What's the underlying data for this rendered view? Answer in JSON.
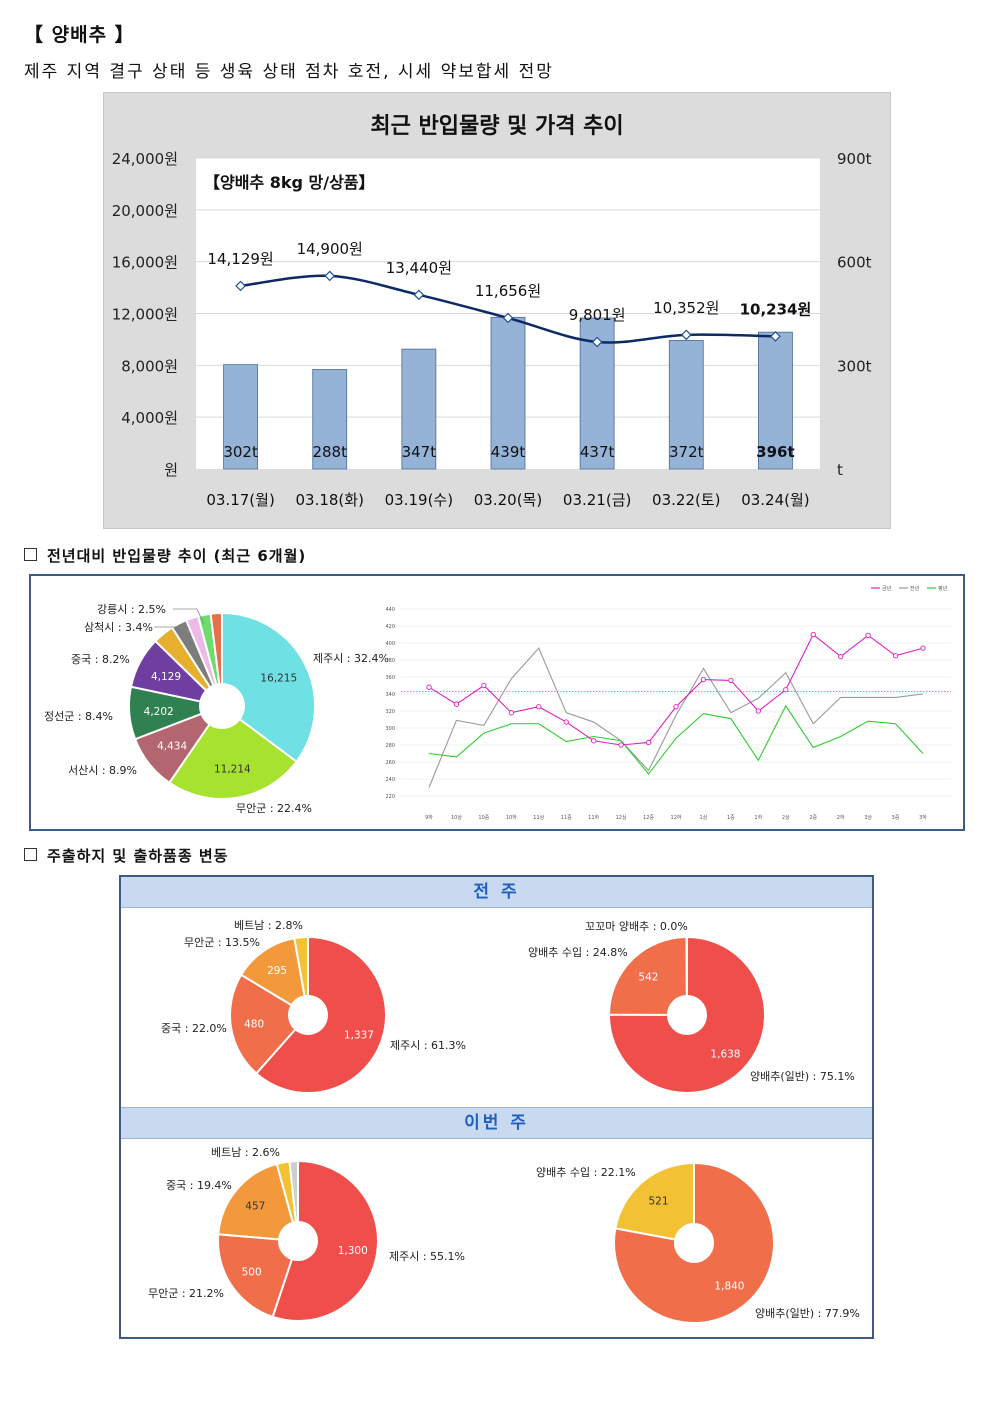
{
  "header": {
    "title": "【 양배추 】",
    "subtitle": "제주 지역 결구 상태 등 생육 상태 점차 호전, 시세 약보합세 전망"
  },
  "sections": {
    "s1": "전년대비 반입물량 추이 (최근 6개월)",
    "s2": "주출하지 및 출하품종 변동"
  },
  "colors": {
    "bar": "#95b3d7",
    "price_line": "#0d2a66",
    "panel_border": "#3f5a87",
    "band_bg": "#c9daf0",
    "band_text": "#1f5fbf"
  },
  "chart_data": [
    {
      "id": "main",
      "type": "bar+line",
      "title": "최근 반입물량 및 가격 추이",
      "inner_label": "【양배추 8kg 망/상품】",
      "categories": [
        "03.17(월)",
        "03.18(화)",
        "03.19(수)",
        "03.20(목)",
        "03.21(금)",
        "03.22(토)",
        "03.24(월)"
      ],
      "volume_values": [
        302,
        288,
        347,
        439,
        437,
        372,
        396
      ],
      "volume_labels": [
        "302t",
        "288t",
        "347t",
        "439t",
        "437t",
        "372t",
        "396t"
      ],
      "price_values": [
        14129,
        14900,
        13440,
        11656,
        9801,
        10352,
        10234
      ],
      "price_labels": [
        "14,129원",
        "14,900원",
        "13,440원",
        "11,656원",
        "9,801원",
        "10,352원",
        "10,234원"
      ],
      "left_axis": {
        "min": 0,
        "max": 24000,
        "ticks": [
          "원",
          "4,000원",
          "8,000원",
          "12,000원",
          "16,000원",
          "20,000원",
          "24,000원"
        ]
      },
      "right_axis": {
        "min": 0,
        "max": 900,
        "ticks": [
          "t",
          "300t",
          "600t",
          "900t"
        ]
      }
    },
    {
      "id": "origin6m",
      "type": "pie",
      "slices": [
        {
          "name": "제주시",
          "pct": "32.4%",
          "value": "16,215",
          "v": 16215,
          "color": "#6fe0e4"
        },
        {
          "name": "무안군",
          "pct": "22.4%",
          "value": "11,214",
          "v": 11214,
          "color": "#a6e22e"
        },
        {
          "name": "서산시",
          "pct": "8.9%",
          "value": "4,434",
          "v": 4434,
          "color": "#b36670"
        },
        {
          "name": "정선군",
          "pct": "8.4%",
          "value": "4,202",
          "v": 4202,
          "color": "#2f8152"
        },
        {
          "name": "중국",
          "pct": "8.2%",
          "value": "4,129",
          "v": 4129,
          "color": "#6e3fa0"
        },
        {
          "name": "삼척시",
          "pct": "3.4%",
          "value": "",
          "v": 1700,
          "color": "#e6b02e"
        },
        {
          "name": "강릉시",
          "pct": "2.5%",
          "value": "",
          "v": 1250,
          "color": "#7c7c7c"
        },
        {
          "name": "",
          "pct": "",
          "value": "",
          "v": 1000,
          "color": "#ebbbe6"
        },
        {
          "name": "",
          "pct": "",
          "value": "",
          "v": 1000,
          "color": "#6ddc6d"
        },
        {
          "name": "",
          "pct": "",
          "value": "",
          "v": 900,
          "color": "#e6704a"
        }
      ]
    },
    {
      "id": "yoy",
      "type": "line",
      "legend": [
        "금년",
        "전년",
        "평년"
      ],
      "x": [
        "9하",
        "10상",
        "10중",
        "10하",
        "11상",
        "11중",
        "11하",
        "12상",
        "12중",
        "12하",
        "1상",
        "1중",
        "1하",
        "2상",
        "2중",
        "2하",
        "3상",
        "3중",
        "3하"
      ],
      "ylim": [
        220,
        440
      ],
      "yticks": [
        "220",
        "240",
        "260",
        "280",
        "300",
        "320",
        "340",
        "360",
        "380",
        "400",
        "420",
        "440"
      ],
      "avg_line": 343,
      "series": [
        {
          "name": "금년",
          "color": "#e020c8",
          "values": [
            348,
            328,
            350,
            318,
            325,
            307,
            285,
            280,
            283,
            325,
            357,
            356,
            320,
            345,
            410,
            384,
            409,
            385,
            394
          ]
        },
        {
          "name": "전년",
          "color": "#999999",
          "values": [
            230,
            309,
            303,
            358,
            394,
            318,
            307,
            285,
            250,
            315,
            370,
            318,
            335,
            365,
            305,
            336,
            336,
            336,
            340
          ]
        },
        {
          "name": "평년",
          "color": "#2fcc2f",
          "values": [
            270,
            266,
            294,
            305,
            305,
            284,
            290,
            285,
            246,
            288,
            317,
            311,
            262,
            326,
            277,
            290,
            308,
            305,
            270
          ]
        }
      ]
    },
    {
      "id": "prev_origin",
      "type": "pie",
      "slices": [
        {
          "name": "제주시",
          "pct": "61.3%",
          "value": "1,337",
          "v": 1337,
          "color": "#ef4e4a"
        },
        {
          "name": "중국",
          "pct": "22.0%",
          "value": "480",
          "v": 480,
          "color": "#f06e4a"
        },
        {
          "name": "무안군",
          "pct": "13.5%",
          "value": "295",
          "v": 295,
          "color": "#f29a3b"
        },
        {
          "name": "베트남",
          "pct": "2.8%",
          "value": "",
          "v": 61,
          "color": "#f3c234"
        }
      ]
    },
    {
      "id": "prev_variety",
      "type": "pie",
      "slices": [
        {
          "name": "양배추(일반)",
          "pct": "75.1%",
          "value": "1,638",
          "v": 1638,
          "color": "#ef4e4a"
        },
        {
          "name": "양배추 수입",
          "pct": "24.8%",
          "value": "542",
          "v": 542,
          "color": "#f06e4a"
        },
        {
          "name": "꼬꼬마 양배추",
          "pct": "0.0%",
          "value": "",
          "v": 2,
          "color": "#f29a3b"
        }
      ]
    },
    {
      "id": "curr_origin",
      "type": "pie",
      "slices": [
        {
          "name": "제주시",
          "pct": "55.1%",
          "value": "1,300",
          "v": 1300,
          "color": "#ef4e4a"
        },
        {
          "name": "무안군",
          "pct": "21.2%",
          "value": "500",
          "v": 500,
          "color": "#f06e4a"
        },
        {
          "name": "중국",
          "pct": "19.4%",
          "value": "457",
          "v": 457,
          "color": "#f29a3b"
        },
        {
          "name": "베트남",
          "pct": "2.6%",
          "value": "",
          "v": 61,
          "color": "#f3c234"
        },
        {
          "name": "",
          "pct": "",
          "value": "",
          "v": 40,
          "color": "#cfcfcf"
        }
      ]
    },
    {
      "id": "curr_variety",
      "type": "pie",
      "slices": [
        {
          "name": "양배추(일반)",
          "pct": "77.9%",
          "value": "1,840",
          "v": 1840,
          "color": "#f06e4a"
        },
        {
          "name": "양배추 수입",
          "pct": "22.1%",
          "value": "521",
          "v": 521,
          "color": "#f3c234"
        }
      ]
    }
  ],
  "shipping_panel": {
    "prev_week_label": "전 주",
    "this_week_label": "이번 주"
  }
}
